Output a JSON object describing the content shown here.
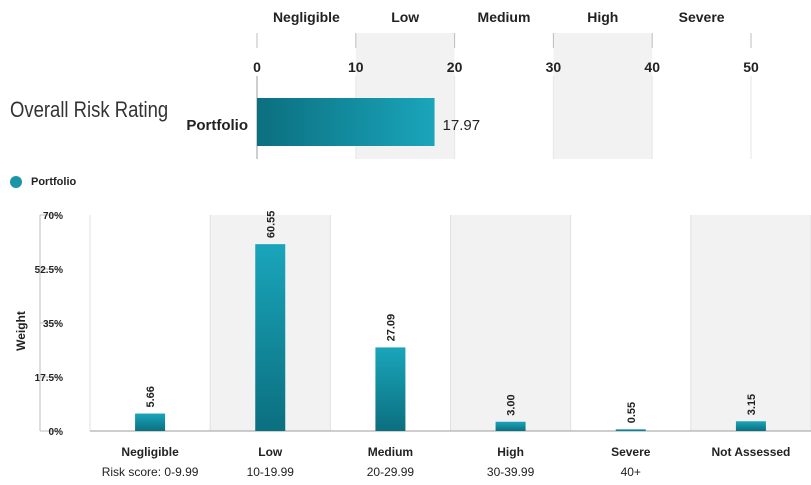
{
  "overall": {
    "title": "Overall Risk Rating",
    "band_labels": [
      "Negligible",
      "Low",
      "Medium",
      "High",
      "Severe"
    ],
    "ticks": [
      0,
      10,
      20,
      30,
      40,
      50
    ],
    "bar_label": "Portfolio",
    "value": 17.97,
    "value_label": "17.97",
    "xlim": [
      0,
      50
    ],
    "shaded_bands": [
      [
        10,
        20
      ],
      [
        30,
        40
      ]
    ]
  },
  "legend": {
    "label": "Portfolio",
    "color": "#1a95a8"
  },
  "colors": {
    "bar_dark": "#0b6f7f",
    "bar_light": "#1aa5bb",
    "band": "#f2f2f2",
    "grid": "#e0e0e0",
    "axis": "#bdbdbd"
  },
  "chart_data": [
    {
      "type": "bar",
      "orientation": "horizontal",
      "title": "Overall Risk Rating",
      "categories": [
        "Portfolio"
      ],
      "values": [
        17.97
      ],
      "xlim": [
        0,
        50
      ],
      "band_labels": [
        "Negligible",
        "Low",
        "Medium",
        "High",
        "Severe"
      ]
    },
    {
      "type": "bar",
      "categories": [
        "Negligible",
        "Low",
        "Medium",
        "High",
        "Severe",
        "Not Assessed"
      ],
      "subcategories": [
        "Risk score: 0-9.99",
        "10-19.99",
        "20-29.99",
        "30-39.99",
        "40+",
        ""
      ],
      "series": [
        {
          "name": "Portfolio",
          "values": [
            5.66,
            60.55,
            27.09,
            3.0,
            0.55,
            3.15
          ]
        }
      ],
      "value_labels": [
        "5.66",
        "60.55",
        "27.09",
        "3.00",
        "0.55",
        "3.15"
      ],
      "ylabel": "Weight",
      "yticks": [
        "0%",
        "17.5%",
        "35%",
        "52.5%",
        "70%"
      ],
      "ytick_values": [
        0,
        17.5,
        35,
        52.5,
        70
      ],
      "ylim": [
        0,
        70
      ],
      "grid": true,
      "legend": "top-left"
    }
  ]
}
